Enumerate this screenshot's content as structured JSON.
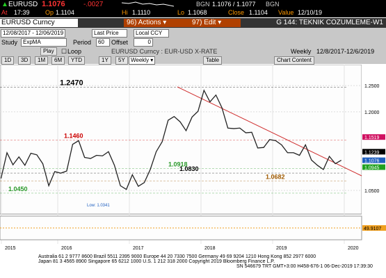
{
  "quote": {
    "ticker": "EURUSD",
    "price": "1.1076",
    "change": "-.0027",
    "bid_label": "BGN",
    "bid_ask": "1.1076 / 1.1077",
    "source": "BGN",
    "at_label": "At",
    "time": "17:39",
    "op_label": "Op",
    "open": "1.1104",
    "hi_label": "Hi",
    "high": "1.1110",
    "lo_label": "Lo",
    "low": "1.1068",
    "close_label": "Close",
    "close": "1.1104",
    "value_label": "Value",
    "value_date": "12/10/19"
  },
  "toolbar": {
    "security": "EURUSD Curncy",
    "actions": "96) Actions ▾",
    "edit": "97) Edit ▾",
    "title": "G 144: TEKNIK COZUMLEME-W1",
    "range": "12/08/2017 - 12/06/2019",
    "field": "Last Price",
    "currency": "Local CCY",
    "study_label": "Study",
    "study": "ExpMA",
    "period_label": "Period",
    "period": "60",
    "offset_label": "Offset",
    "offset": "0",
    "play": "Play",
    "loop": "Loop",
    "description": "EURUSD Curncy : EUR-USD X-RATE",
    "frequency": "Weekly",
    "period_range": "12/8/2017-12/6/2019",
    "buttons": [
      "1D",
      "3D",
      "1M",
      "6M",
      "YTD",
      "1Y",
      "5Y",
      "Max"
    ],
    "frequency_select": "Weekly ▾",
    "table": "Table",
    "chart_content": "Chart Content"
  },
  "chart_data": {
    "type": "line",
    "color": "#222222",
    "x_labels": [
      "2015",
      "2016",
      "2017",
      "2018",
      "2019",
      "2020"
    ],
    "values": [
      1.073,
      1.122,
      1.099,
      1.114,
      1.098,
      1.121,
      1.118,
      1.101,
      1.059,
      1.086,
      1.083,
      1.087,
      1.138,
      1.145,
      1.113,
      1.111,
      1.117,
      1.116,
      1.124,
      1.098,
      1.059,
      1.052,
      1.08,
      1.058,
      1.065,
      1.09,
      1.124,
      1.143,
      1.184,
      1.191,
      1.181,
      1.164,
      1.19,
      1.201,
      1.241,
      1.219,
      1.232,
      1.208,
      1.169,
      1.168,
      1.169,
      1.16,
      1.161,
      1.131,
      1.132,
      1.147,
      1.145,
      1.137,
      1.122,
      1.122,
      1.117,
      1.137,
      1.108,
      1.098,
      1.09,
      1.115,
      1.101,
      1.1076
    ],
    "ylim": [
      1.005,
      1.29
    ],
    "yticks": [
      {
        "value": 1.25,
        "label": "1.2500"
      },
      {
        "value": 1.2,
        "label": "1.2000"
      },
      {
        "value": 1.05,
        "label": "1.0500"
      }
    ],
    "levels": [
      {
        "value": 1.247,
        "label": "1.2470",
        "color": "#000000"
      },
      {
        "value": 1.146,
        "label": "1.1460",
        "color": "#cc0000"
      },
      {
        "value": 1.0918,
        "label": "1.0918",
        "color": "#2a9a2a"
      },
      {
        "value": 1.083,
        "label": "1.0830",
        "color": "#000000"
      },
      {
        "value": 1.0682,
        "label": "1.0682",
        "color": "#a05a00"
      },
      {
        "value": 1.045,
        "label": "1.0450",
        "color": "#2a9a2a"
      }
    ],
    "low_label": "Low: 1.0341",
    "tags": [
      {
        "value": 1.1519,
        "label": "1.1519",
        "color": "#d01060"
      },
      {
        "value": 1.1239,
        "label": "1.1239",
        "color": "#000000"
      },
      {
        "value": 1.1076,
        "label": "1.1076",
        "color": "#2060c0"
      },
      {
        "value": 1.0945,
        "label": "1.0945",
        "color": "#20a020"
      }
    ],
    "rsi_tag": {
      "value": 49.9107,
      "label": "49.9107"
    }
  },
  "footer": [
    "Australia 61 2 9777 8600 Brazil 5511 2395 9000 Europe 44 20 7330 7500 Germany 49 69 9204 1210 Hong Kong 852 2977 6000",
    "Japan 81 3 4565 8900        Singapore 65 6212 1000        U.S. 1 212 318 2000        Copyright 2019 Bloomberg Finance L.P.",
    "SN 546679 TRT GMT+3:00 H458-676-1 06-Dec-2019 17:39:30"
  ]
}
